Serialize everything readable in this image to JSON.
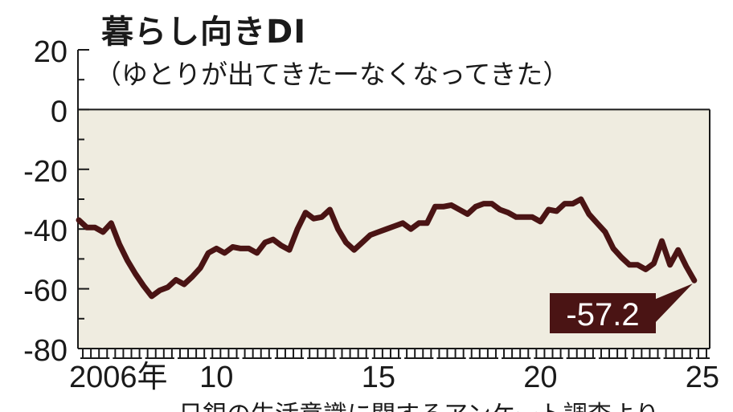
{
  "chart_data": {
    "type": "line",
    "title": "暮らし向きDI",
    "subtitle": "（ゆとりが出てきたーなくなってきた）",
    "source": "日銀の生活意識に関するアンケート調査より",
    "ylim": [
      -80,
      20
    ],
    "yticks": [
      20,
      0,
      -20,
      -40,
      -60,
      -80
    ],
    "ytick_labels": [
      "20",
      "0",
      "-20",
      "-40",
      "-60",
      "-80"
    ],
    "xlim": [
      2006,
      2025.5
    ],
    "xticks": [
      {
        "value": 2006.25,
        "label": "2006年"
      },
      {
        "value": 2010.25,
        "label": "10"
      },
      {
        "value": 2015.25,
        "label": "15"
      },
      {
        "value": 2020.25,
        "label": "20"
      },
      {
        "value": 2025.25,
        "label": "25"
      }
    ],
    "colors": {
      "line": "#4a1414",
      "plot_bg": "#efece0",
      "axis": "#1a1a1a",
      "callout_bg": "#4a1414",
      "callout_text": "#ffffff"
    },
    "series": [
      {
        "name": "",
        "x": [
          2006.0,
          2006.25,
          2006.5,
          2006.75,
          2007.0,
          2007.25,
          2007.5,
          2007.75,
          2008.0,
          2008.25,
          2008.5,
          2008.75,
          2009.0,
          2009.25,
          2009.5,
          2009.75,
          2010.0,
          2010.25,
          2010.5,
          2010.75,
          2011.0,
          2011.25,
          2011.5,
          2011.75,
          2012.0,
          2012.25,
          2012.5,
          2012.75,
          2013.0,
          2013.25,
          2013.5,
          2013.75,
          2014.0,
          2014.25,
          2014.5,
          2014.75,
          2015.0,
          2015.25,
          2015.5,
          2015.75,
          2016.0,
          2016.25,
          2016.5,
          2016.75,
          2017.0,
          2017.25,
          2017.5,
          2017.75,
          2018.0,
          2018.25,
          2018.5,
          2018.75,
          2019.0,
          2019.25,
          2019.5,
          2019.75,
          2020.0,
          2020.25,
          2020.5,
          2020.75,
          2021.0,
          2021.25,
          2021.5,
          2021.75,
          2022.0,
          2022.25,
          2022.5,
          2022.75,
          2023.0,
          2023.25,
          2023.5,
          2023.75,
          2024.0,
          2024.25,
          2024.5,
          2024.75,
          2025.0
        ],
        "values": [
          -37,
          -39.5,
          -39.5,
          -41,
          -38,
          -45,
          -50.5,
          -55,
          -59,
          -62.5,
          -60.5,
          -59.5,
          -57,
          -58.5,
          -56,
          -53,
          -48,
          -46.5,
          -48,
          -46,
          -46.5,
          -46.5,
          -48,
          -44.5,
          -43.5,
          -45.5,
          -47,
          -40,
          -34.5,
          -36.5,
          -36,
          -33.5,
          -40,
          -44.5,
          -47,
          -44.5,
          -42,
          -41,
          -40,
          -39,
          -38,
          -40,
          -38,
          -38,
          -32.5,
          -32.5,
          -32,
          -33.5,
          -35,
          -32.5,
          -31.5,
          -31.5,
          -33.5,
          -34.5,
          -36,
          -36,
          -36,
          -37.5,
          -33.5,
          -34,
          -31.5,
          -31.5,
          -30,
          -35,
          -38,
          -41,
          -46.5,
          -49.5,
          -52,
          -52,
          -53.5,
          -51.5,
          -44,
          -52,
          -47,
          -52.5,
          -57.2
        ]
      }
    ],
    "annotation": {
      "x": 2025.0,
      "y": -57.2,
      "label": "-57.2"
    }
  }
}
